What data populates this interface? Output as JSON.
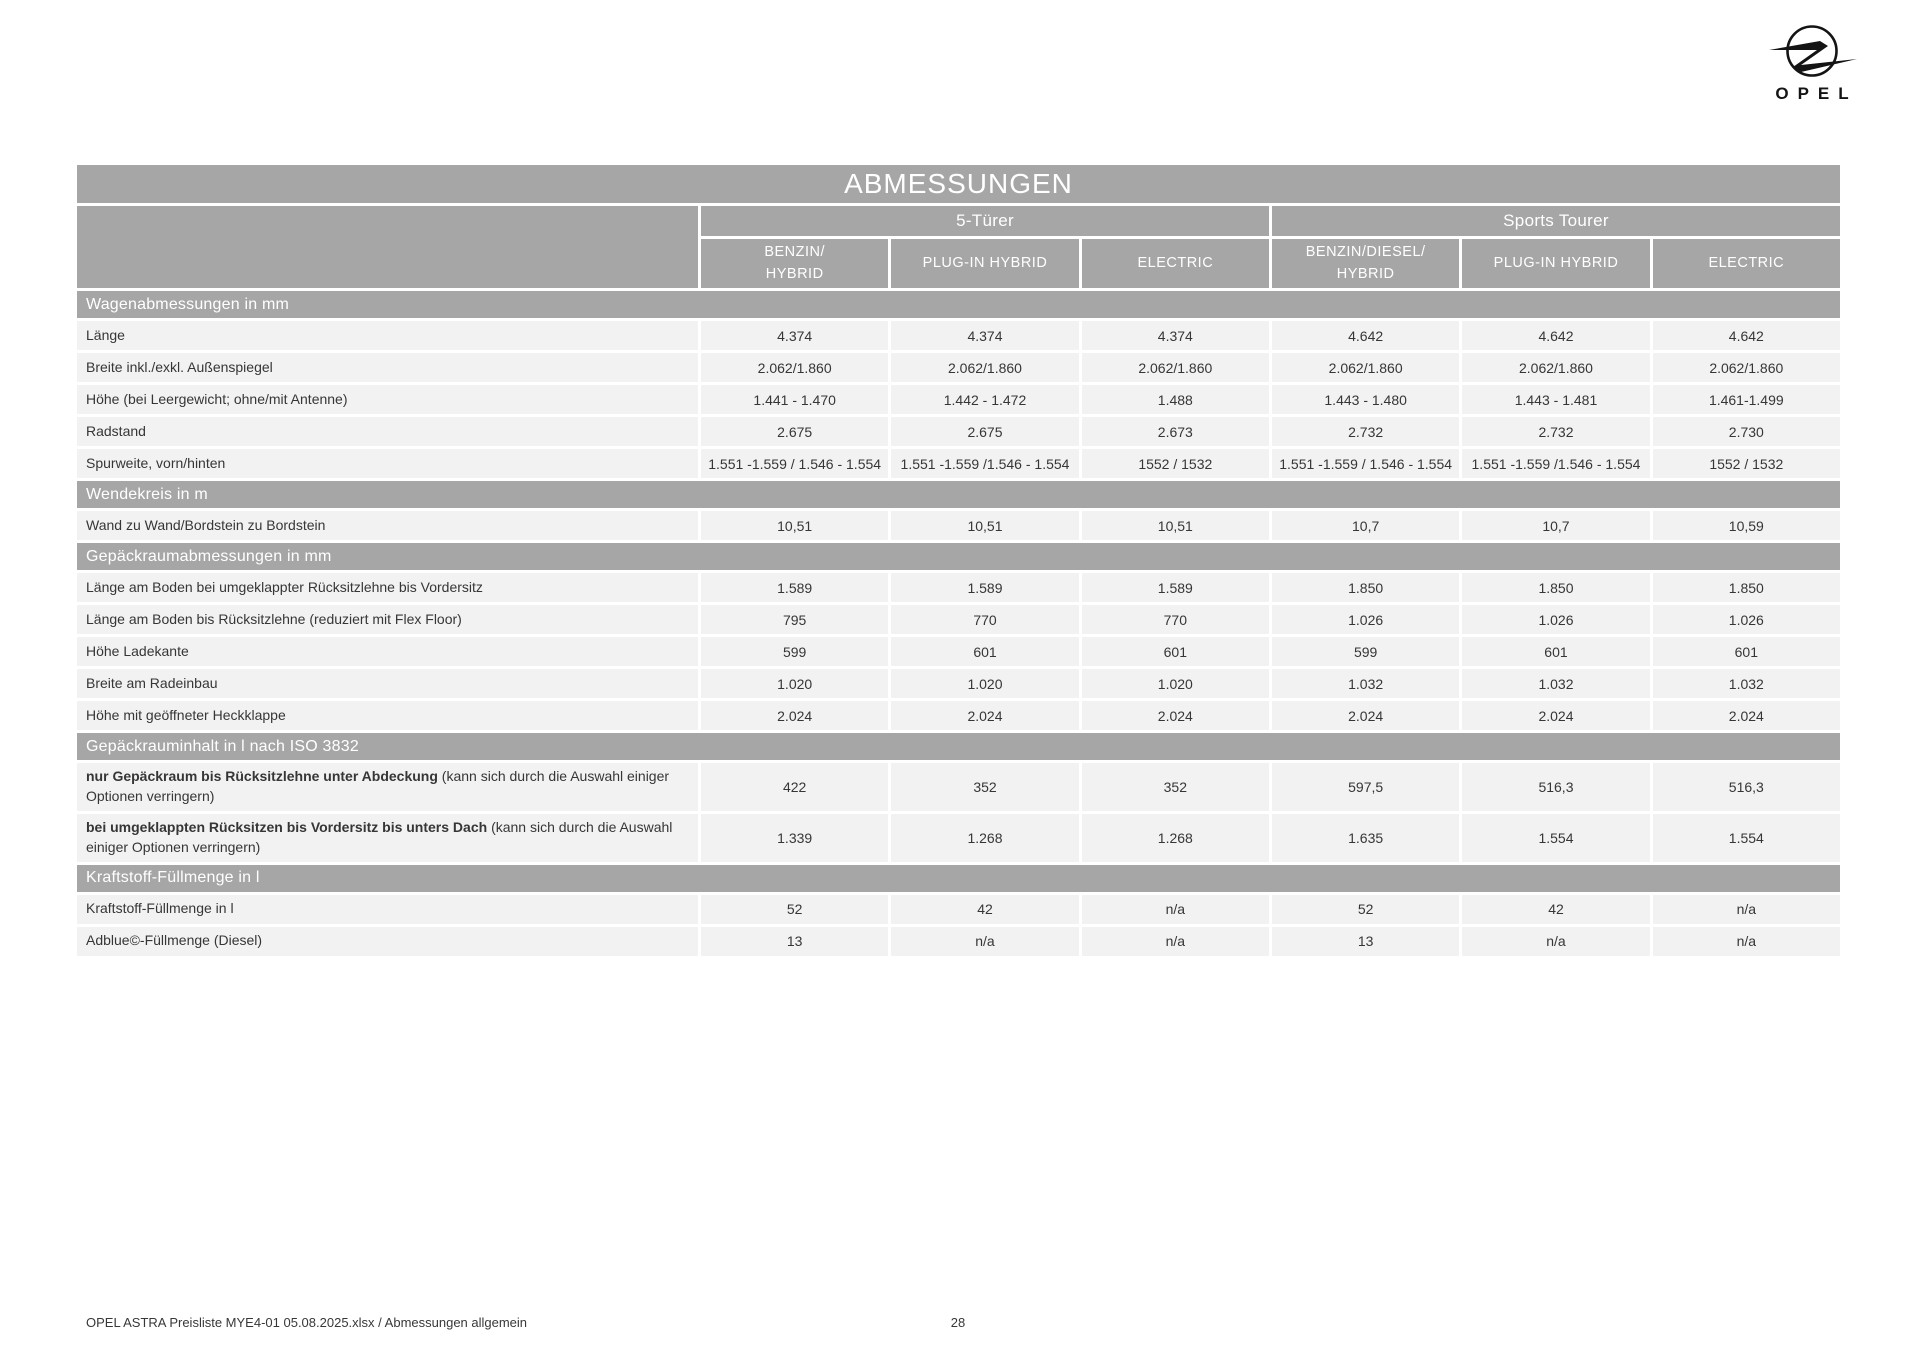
{
  "logo": {
    "wordmark": "OPEL"
  },
  "table": {
    "title": "ABMESSUNGEN",
    "groups": [
      {
        "label": "5-Türer"
      },
      {
        "label": "Sports Tourer"
      }
    ],
    "columns": [
      {
        "label": "BENZIN/\nHYBRID"
      },
      {
        "label": "PLUG-IN HYBRID"
      },
      {
        "label": "ELECTRIC"
      },
      {
        "label": "BENZIN/DIESEL/\nHYBRID"
      },
      {
        "label": "PLUG-IN HYBRID"
      },
      {
        "label": "ELECTRIC"
      }
    ],
    "sections": [
      {
        "header": "Wagenabmessungen in mm",
        "rows": [
          {
            "label": "Länge",
            "values": [
              "4.374",
              "4.374",
              "4.374",
              "4.642",
              "4.642",
              "4.642"
            ]
          },
          {
            "label": "Breite inkl./exkl. Außenspiegel",
            "values": [
              "2.062/1.860",
              "2.062/1.860",
              "2.062/1.860",
              "2.062/1.860",
              "2.062/1.860",
              "2.062/1.860"
            ]
          },
          {
            "label": "Höhe (bei Leergewicht; ohne/mit Antenne)",
            "values": [
              "1.441 - 1.470",
              "1.442 - 1.472",
              "1.488",
              "1.443 - 1.480",
              "1.443 - 1.481",
              "1.461-1.499"
            ]
          },
          {
            "label": "Radstand",
            "values": [
              "2.675",
              "2.675",
              "2.673",
              "2.732",
              "2.732",
              "2.730"
            ]
          },
          {
            "label": "Spurweite, vorn/hinten",
            "values": [
              "1.551 -1.559 / 1.546 - 1.554",
              "1.551 -1.559 /1.546 - 1.554",
              "1552 / 1532",
              "1.551 -1.559 / 1.546 - 1.554",
              "1.551 -1.559 /1.546 - 1.554",
              "1552 / 1532"
            ]
          }
        ]
      },
      {
        "header": "Wendekreis in m",
        "rows": [
          {
            "label": "Wand zu Wand/Bordstein zu Bordstein",
            "values": [
              "10,51",
              "10,51",
              "10,51",
              "10,7",
              "10,7",
              "10,59"
            ]
          }
        ]
      },
      {
        "header": "Gepäckraumabmessungen in mm",
        "rows": [
          {
            "label": "Länge am Boden bei umgeklappter Rücksitzlehne bis Vordersitz",
            "values": [
              "1.589",
              "1.589",
              "1.589",
              "1.850",
              "1.850",
              "1.850"
            ]
          },
          {
            "label": "Länge am Boden bis Rücksitzlehne (reduziert mit Flex Floor)",
            "values": [
              "795",
              "770",
              "770",
              "1.026",
              "1.026",
              "1.026"
            ]
          },
          {
            "label": "Höhe Ladekante",
            "values": [
              "599",
              "601",
              "601",
              "599",
              "601",
              "601"
            ]
          },
          {
            "label": "Breite am Radeinbau",
            "values": [
              "1.020",
              "1.020",
              "1.020",
              "1.032",
              "1.032",
              "1.032"
            ]
          },
          {
            "label": "Höhe mit geöffneter Heckklappe",
            "values": [
              "2.024",
              "2.024",
              "2.024",
              "2.024",
              "2.024",
              "2.024"
            ]
          }
        ]
      },
      {
        "header": "Gepäckrauminhalt in l nach ISO 3832",
        "rows": [
          {
            "label": "nur Gepäckraum bis Rücksitzlehne unter Abdeckung",
            "note": "(kann sich durch die Auswahl einiger Optionen verringern)",
            "values": [
              "422",
              "352",
              "352",
              "597,5",
              "516,3",
              "516,3"
            ]
          },
          {
            "label": "bei umgeklappten Rücksitzen bis Vordersitz bis unters Dach",
            "note": "(kann sich durch die Auswahl einiger Optionen verringern)",
            "values": [
              "1.339",
              "1.268",
              "1.268",
              "1.635",
              "1.554",
              "1.554"
            ]
          }
        ]
      },
      {
        "header": "Kraftstoff-Füllmenge in l",
        "rows": [
          {
            "label": "Kraftstoff-Füllmenge in l",
            "values": [
              "52",
              "42",
              "n/a",
              "52",
              "42",
              "n/a"
            ]
          },
          {
            "label": "Adblue©-Füllmenge (Diesel)",
            "values": [
              "13",
              "n/a",
              "n/a",
              "13",
              "n/a",
              "n/a"
            ]
          }
        ]
      }
    ]
  },
  "footer": {
    "document": "OPEL ASTRA Preisliste MYE4-01 05.08.2025.xlsx / Abmessungen allgemein",
    "page_number": "28"
  }
}
